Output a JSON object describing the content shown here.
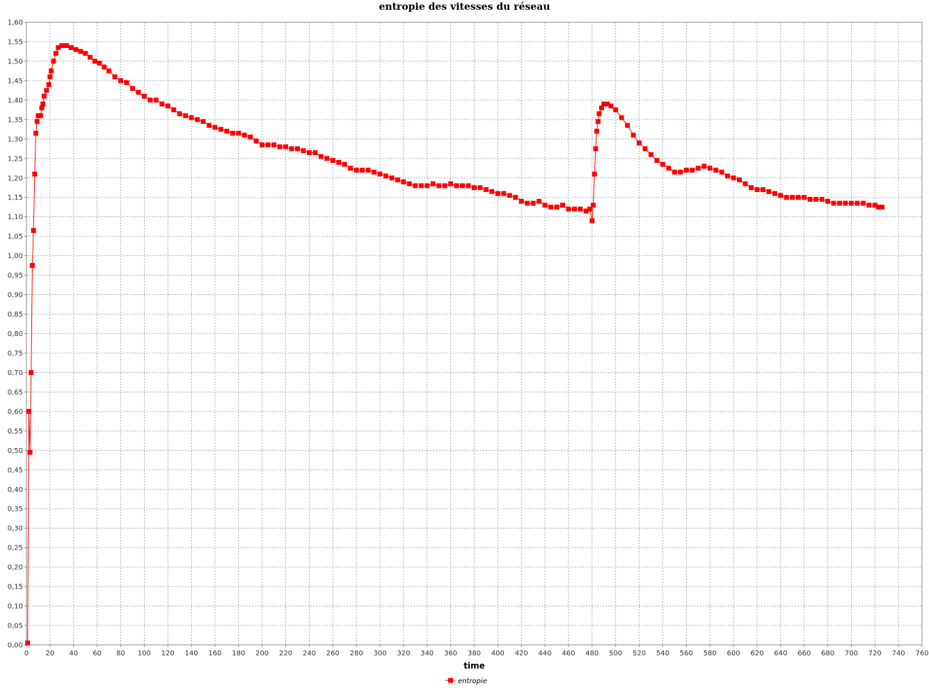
{
  "chart_data": {
    "type": "line",
    "title": "entropie des vitesses du réseau",
    "xlabel": "time",
    "ylabel": "",
    "xlim": [
      0,
      760
    ],
    "ylim": [
      0,
      1.6
    ],
    "x_ticks": [
      "0",
      "20",
      "40",
      "60",
      "80",
      "100",
      "120",
      "140",
      "160",
      "180",
      "200",
      "220",
      "240",
      "260",
      "280",
      "300",
      "320",
      "340",
      "360",
      "380",
      "400",
      "420",
      "440",
      "460",
      "480",
      "500",
      "520",
      "540",
      "560",
      "580",
      "600",
      "620",
      "640",
      "660",
      "680",
      "700",
      "720",
      "740",
      "760"
    ],
    "y_ticks": [
      "0,00",
      "0,05",
      "0,10",
      "0,15",
      "0,20",
      "0,25",
      "0,30",
      "0,35",
      "0,40",
      "0,45",
      "0,50",
      "0,55",
      "0,60",
      "0,65",
      "0,70",
      "0,75",
      "0,80",
      "0,85",
      "0,90",
      "0,95",
      "1,00",
      "1,05",
      "1,10",
      "1,15",
      "1,20",
      "1,25",
      "1,30",
      "1,35",
      "1,40",
      "1,45",
      "1,50",
      "1,55",
      "1,60"
    ],
    "grid": true,
    "legend_position": "bottom",
    "series": [
      {
        "name": "entropie",
        "color": "#ff0000",
        "marker": "square",
        "points": [
          [
            1,
            0.005
          ],
          [
            2,
            0.6
          ],
          [
            3,
            0.495
          ],
          [
            4,
            0.7
          ],
          [
            5,
            0.975
          ],
          [
            6,
            1.065
          ],
          [
            7,
            1.21
          ],
          [
            8,
            1.315
          ],
          [
            9,
            1.345
          ],
          [
            10,
            1.36
          ],
          [
            12,
            1.36
          ],
          [
            13,
            1.38
          ],
          [
            14,
            1.39
          ],
          [
            15,
            1.41
          ],
          [
            17,
            1.425
          ],
          [
            19,
            1.44
          ],
          [
            20,
            1.46
          ],
          [
            21,
            1.475
          ],
          [
            23,
            1.5
          ],
          [
            25,
            1.52
          ],
          [
            27,
            1.535
          ],
          [
            30,
            1.54
          ],
          [
            34,
            1.54
          ],
          [
            38,
            1.535
          ],
          [
            42,
            1.53
          ],
          [
            46,
            1.525
          ],
          [
            50,
            1.52
          ],
          [
            54,
            1.51
          ],
          [
            58,
            1.5
          ],
          [
            62,
            1.495
          ],
          [
            66,
            1.485
          ],
          [
            70,
            1.475
          ],
          [
            75,
            1.46
          ],
          [
            80,
            1.45
          ],
          [
            85,
            1.445
          ],
          [
            90,
            1.43
          ],
          [
            95,
            1.42
          ],
          [
            100,
            1.41
          ],
          [
            105,
            1.4
          ],
          [
            110,
            1.4
          ],
          [
            115,
            1.39
          ],
          [
            120,
            1.385
          ],
          [
            125,
            1.375
          ],
          [
            130,
            1.365
          ],
          [
            135,
            1.36
          ],
          [
            140,
            1.355
          ],
          [
            145,
            1.35
          ],
          [
            150,
            1.345
          ],
          [
            155,
            1.335
          ],
          [
            160,
            1.33
          ],
          [
            165,
            1.325
          ],
          [
            170,
            1.32
          ],
          [
            175,
            1.315
          ],
          [
            180,
            1.315
          ],
          [
            185,
            1.31
          ],
          [
            190,
            1.305
          ],
          [
            195,
            1.295
          ],
          [
            200,
            1.285
          ],
          [
            205,
            1.285
          ],
          [
            210,
            1.285
          ],
          [
            215,
            1.28
          ],
          [
            220,
            1.28
          ],
          [
            225,
            1.275
          ],
          [
            230,
            1.275
          ],
          [
            235,
            1.27
          ],
          [
            240,
            1.265
          ],
          [
            245,
            1.265
          ],
          [
            250,
            1.255
          ],
          [
            255,
            1.25
          ],
          [
            260,
            1.245
          ],
          [
            265,
            1.24
          ],
          [
            270,
            1.235
          ],
          [
            275,
            1.225
          ],
          [
            280,
            1.22
          ],
          [
            285,
            1.22
          ],
          [
            290,
            1.22
          ],
          [
            295,
            1.215
          ],
          [
            300,
            1.21
          ],
          [
            305,
            1.205
          ],
          [
            310,
            1.2
          ],
          [
            315,
            1.195
          ],
          [
            320,
            1.19
          ],
          [
            325,
            1.185
          ],
          [
            330,
            1.18
          ],
          [
            335,
            1.18
          ],
          [
            340,
            1.18
          ],
          [
            345,
            1.185
          ],
          [
            350,
            1.18
          ],
          [
            355,
            1.18
          ],
          [
            360,
            1.185
          ],
          [
            365,
            1.18
          ],
          [
            370,
            1.18
          ],
          [
            375,
            1.18
          ],
          [
            380,
            1.175
          ],
          [
            385,
            1.175
          ],
          [
            390,
            1.17
          ],
          [
            395,
            1.165
          ],
          [
            400,
            1.16
          ],
          [
            405,
            1.16
          ],
          [
            410,
            1.155
          ],
          [
            415,
            1.15
          ],
          [
            420,
            1.14
          ],
          [
            425,
            1.135
          ],
          [
            430,
            1.135
          ],
          [
            435,
            1.14
          ],
          [
            440,
            1.13
          ],
          [
            445,
            1.125
          ],
          [
            450,
            1.125
          ],
          [
            455,
            1.13
          ],
          [
            460,
            1.12
          ],
          [
            465,
            1.12
          ],
          [
            470,
            1.12
          ],
          [
            475,
            1.115
          ],
          [
            478,
            1.12
          ],
          [
            480,
            1.09
          ],
          [
            481,
            1.13
          ],
          [
            482,
            1.21
          ],
          [
            483,
            1.275
          ],
          [
            484,
            1.32
          ],
          [
            485,
            1.345
          ],
          [
            486,
            1.365
          ],
          [
            488,
            1.38
          ],
          [
            490,
            1.39
          ],
          [
            493,
            1.39
          ],
          [
            496,
            1.385
          ],
          [
            500,
            1.375
          ],
          [
            505,
            1.355
          ],
          [
            510,
            1.335
          ],
          [
            515,
            1.31
          ],
          [
            520,
            1.29
          ],
          [
            525,
            1.275
          ],
          [
            530,
            1.26
          ],
          [
            535,
            1.245
          ],
          [
            540,
            1.235
          ],
          [
            545,
            1.225
          ],
          [
            550,
            1.215
          ],
          [
            555,
            1.215
          ],
          [
            560,
            1.22
          ],
          [
            565,
            1.22
          ],
          [
            570,
            1.225
          ],
          [
            575,
            1.23
          ],
          [
            580,
            1.225
          ],
          [
            585,
            1.22
          ],
          [
            590,
            1.215
          ],
          [
            595,
            1.205
          ],
          [
            600,
            1.2
          ],
          [
            605,
            1.195
          ],
          [
            610,
            1.185
          ],
          [
            615,
            1.175
          ],
          [
            620,
            1.17
          ],
          [
            625,
            1.17
          ],
          [
            630,
            1.165
          ],
          [
            635,
            1.16
          ],
          [
            640,
            1.155
          ],
          [
            645,
            1.15
          ],
          [
            650,
            1.15
          ],
          [
            655,
            1.15
          ],
          [
            660,
            1.15
          ],
          [
            665,
            1.145
          ],
          [
            670,
            1.145
          ],
          [
            675,
            1.145
          ],
          [
            680,
            1.14
          ],
          [
            685,
            1.135
          ],
          [
            690,
            1.135
          ],
          [
            695,
            1.135
          ],
          [
            700,
            1.135
          ],
          [
            705,
            1.135
          ],
          [
            710,
            1.135
          ],
          [
            715,
            1.13
          ],
          [
            720,
            1.13
          ],
          [
            723,
            1.125
          ],
          [
            726,
            1.125
          ]
        ]
      }
    ]
  }
}
